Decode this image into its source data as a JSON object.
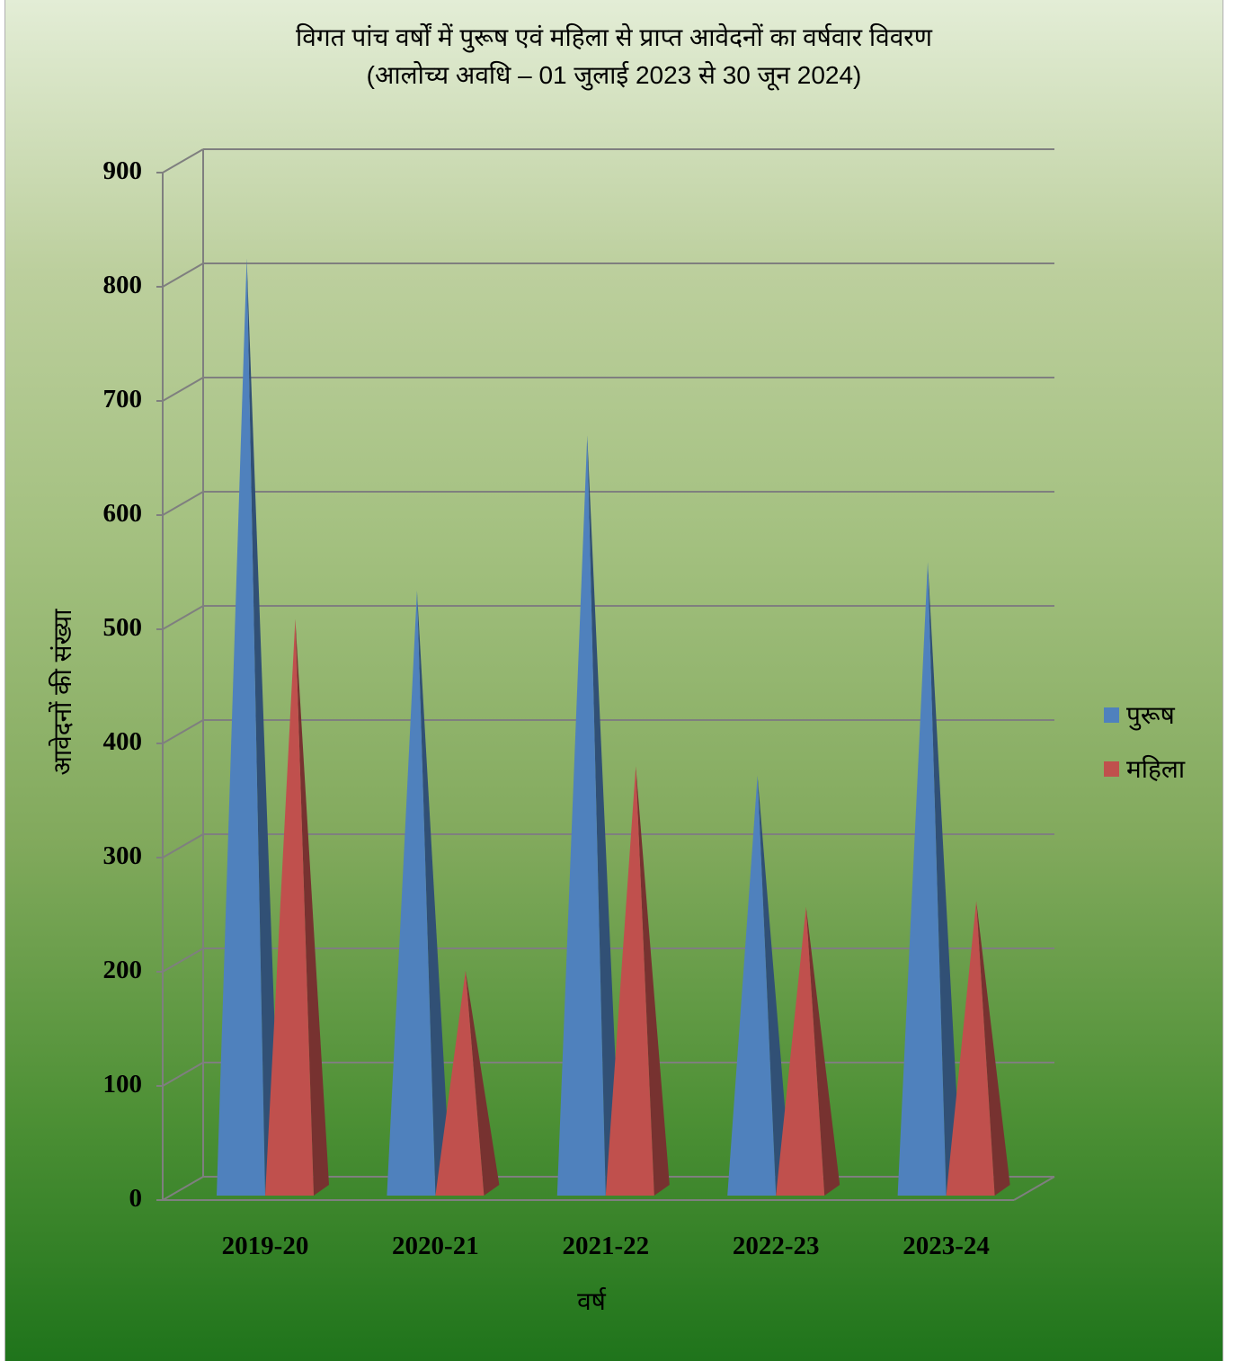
{
  "chart_data": {
    "type": "bar",
    "style": "3d-pyramid",
    "title": "विगत पांच वर्षों में पुरूष एवं महिला से प्राप्त आवेदनों का वर्षवार विवरण",
    "subtitle": "(आलोच्य अवधि – 01 जुलाई 2023 से 30 जून 2024)",
    "xlabel": "वर्ष",
    "ylabel": "आवेदनों की संख्या",
    "categories": [
      "2019-20",
      "2020-21",
      "2021-22",
      "2022-23",
      "2023-24"
    ],
    "yticks": [
      "0",
      "100",
      "200",
      "300",
      "400",
      "500",
      "600",
      "700",
      "800",
      "900"
    ],
    "ylim": [
      0,
      900
    ],
    "grid": true,
    "legend_position": "right",
    "series": [
      {
        "name": "पुरूष",
        "color": "#4f81bd",
        "values": [
          817,
          526,
          662,
          364,
          551
        ]
      },
      {
        "name": "महिला",
        "color": "#c0504d",
        "values": [
          501,
          193,
          372,
          249,
          254
        ]
      }
    ]
  }
}
